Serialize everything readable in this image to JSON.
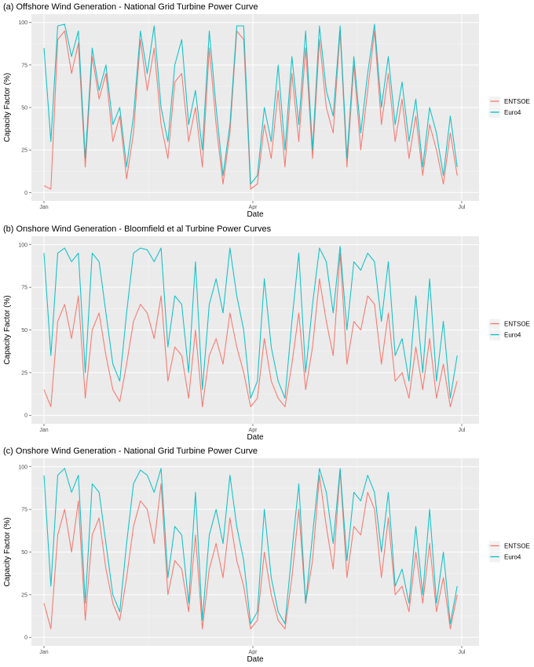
{
  "colors": {
    "entsoe": "#F8766D",
    "euro4": "#00BFC4"
  },
  "chart_data": [
    {
      "type": "line",
      "title": "(a) Offshore Wind Generation - National Grid Turbine Power Curve",
      "xlabel": "Date",
      "ylabel": "Capacity Factor (%)",
      "xlim": [
        "2016-01-01",
        "2016-07-01"
      ],
      "ylim": [
        0,
        100
      ],
      "xticks": [
        "Jan",
        "Apr",
        "Jul"
      ],
      "yticks": [
        "0",
        "25",
        "50",
        "75",
        "100"
      ],
      "grid": true,
      "legend": "right",
      "x": [
        "2016-01-01",
        "2016-01-04",
        "2016-01-07",
        "2016-01-10",
        "2016-01-13",
        "2016-01-16",
        "2016-01-19",
        "2016-01-22",
        "2016-01-25",
        "2016-01-28",
        "2016-01-31",
        "2016-02-03",
        "2016-02-06",
        "2016-02-09",
        "2016-02-12",
        "2016-02-15",
        "2016-02-18",
        "2016-02-21",
        "2016-02-24",
        "2016-02-27",
        "2016-03-01",
        "2016-03-04",
        "2016-03-07",
        "2016-03-10",
        "2016-03-13",
        "2016-03-16",
        "2016-03-19",
        "2016-03-22",
        "2016-03-25",
        "2016-03-28",
        "2016-03-31",
        "2016-04-03",
        "2016-04-06",
        "2016-04-09",
        "2016-04-12",
        "2016-04-15",
        "2016-04-18",
        "2016-04-21",
        "2016-04-24",
        "2016-04-27",
        "2016-04-30",
        "2016-05-03",
        "2016-05-06",
        "2016-05-09",
        "2016-05-12",
        "2016-05-15",
        "2016-05-18",
        "2016-05-21",
        "2016-05-24",
        "2016-05-27",
        "2016-05-30",
        "2016-06-02",
        "2016-06-05",
        "2016-06-08",
        "2016-06-11",
        "2016-06-14",
        "2016-06-17",
        "2016-06-20",
        "2016-06-23",
        "2016-06-26",
        "2016-06-29"
      ],
      "series": [
        {
          "name": "ENTSOE",
          "values": [
            4,
            2,
            90,
            95,
            70,
            88,
            15,
            80,
            55,
            70,
            30,
            45,
            8,
            35,
            90,
            60,
            85,
            40,
            20,
            65,
            70,
            30,
            50,
            15,
            85,
            40,
            5,
            35,
            95,
            90,
            2,
            5,
            40,
            20,
            60,
            15,
            70,
            30,
            85,
            20,
            90,
            50,
            35,
            95,
            15,
            75,
            25,
            60,
            95,
            40,
            70,
            30,
            55,
            20,
            45,
            10,
            40,
            25,
            5,
            35,
            10
          ]
        },
        {
          "name": "Euro4",
          "values": [
            85,
            30,
            98,
            99,
            80,
            95,
            20,
            85,
            60,
            75,
            40,
            50,
            15,
            45,
            95,
            70,
            98,
            50,
            30,
            75,
            90,
            40,
            60,
            25,
            95,
            50,
            10,
            40,
            98,
            98,
            5,
            10,
            50,
            30,
            75,
            25,
            80,
            40,
            95,
            25,
            98,
            60,
            45,
            98,
            20,
            80,
            35,
            70,
            99,
            50,
            80,
            40,
            65,
            30,
            55,
            15,
            50,
            35,
            10,
            45,
            15
          ]
        }
      ]
    },
    {
      "type": "line",
      "title": "(b) Onshore Wind Generation - Bloomfield et al Turbine Power Curves",
      "xlabel": "Date",
      "ylabel": "Capacity Factor (%)",
      "xlim": [
        "2016-01-01",
        "2016-07-01"
      ],
      "ylim": [
        0,
        100
      ],
      "xticks": [
        "Jan",
        "Apr",
        "Jul"
      ],
      "yticks": [
        "0",
        "25",
        "50",
        "75",
        "100"
      ],
      "grid": true,
      "legend": "right",
      "x": [
        "2016-01-01",
        "2016-01-04",
        "2016-01-07",
        "2016-01-10",
        "2016-01-13",
        "2016-01-16",
        "2016-01-19",
        "2016-01-22",
        "2016-01-25",
        "2016-01-28",
        "2016-01-31",
        "2016-02-03",
        "2016-02-06",
        "2016-02-09",
        "2016-02-12",
        "2016-02-15",
        "2016-02-18",
        "2016-02-21",
        "2016-02-24",
        "2016-02-27",
        "2016-03-01",
        "2016-03-04",
        "2016-03-07",
        "2016-03-10",
        "2016-03-13",
        "2016-03-16",
        "2016-03-19",
        "2016-03-22",
        "2016-03-25",
        "2016-03-28",
        "2016-03-31",
        "2016-04-03",
        "2016-04-06",
        "2016-04-09",
        "2016-04-12",
        "2016-04-15",
        "2016-04-18",
        "2016-04-21",
        "2016-04-24",
        "2016-04-27",
        "2016-04-30",
        "2016-05-03",
        "2016-05-06",
        "2016-05-09",
        "2016-05-12",
        "2016-05-15",
        "2016-05-18",
        "2016-05-21",
        "2016-05-24",
        "2016-05-27",
        "2016-05-30",
        "2016-06-02",
        "2016-06-05",
        "2016-06-08",
        "2016-06-11",
        "2016-06-14",
        "2016-06-17",
        "2016-06-20",
        "2016-06-23",
        "2016-06-26",
        "2016-06-29"
      ],
      "series": [
        {
          "name": "ENTSOE",
          "values": [
            15,
            5,
            55,
            65,
            45,
            70,
            10,
            50,
            60,
            35,
            15,
            8,
            30,
            55,
            65,
            60,
            45,
            70,
            20,
            40,
            35,
            10,
            50,
            5,
            35,
            45,
            30,
            60,
            40,
            25,
            5,
            10,
            45,
            20,
            10,
            5,
            30,
            60,
            15,
            40,
            80,
            55,
            35,
            95,
            30,
            55,
            50,
            70,
            65,
            30,
            60,
            20,
            25,
            10,
            40,
            15,
            45,
            10,
            30,
            5,
            20
          ]
        },
        {
          "name": "Euro4",
          "values": [
            95,
            35,
            95,
            98,
            90,
            95,
            25,
            95,
            90,
            60,
            30,
            20,
            60,
            95,
            98,
            97,
            90,
            98,
            40,
            70,
            65,
            25,
            90,
            15,
            65,
            80,
            60,
            98,
            70,
            50,
            10,
            20,
            80,
            40,
            20,
            10,
            55,
            95,
            25,
            65,
            98,
            90,
            60,
            99,
            50,
            90,
            85,
            95,
            90,
            55,
            90,
            35,
            45,
            20,
            70,
            25,
            80,
            20,
            55,
            10,
            35
          ]
        }
      ]
    },
    {
      "type": "line",
      "title": "(c) Onshore Wind Generation - National Grid Turbine Power Curve",
      "xlabel": "Date",
      "ylabel": "Capacity Factor (%)",
      "xlim": [
        "2016-01-01",
        "2016-07-01"
      ],
      "ylim": [
        0,
        100
      ],
      "xticks": [
        "Jan",
        "Apr",
        "Jul"
      ],
      "yticks": [
        "0",
        "25",
        "50",
        "75",
        "100"
      ],
      "grid": true,
      "legend": "right",
      "x": [
        "2016-01-01",
        "2016-01-04",
        "2016-01-07",
        "2016-01-10",
        "2016-01-13",
        "2016-01-16",
        "2016-01-19",
        "2016-01-22",
        "2016-01-25",
        "2016-01-28",
        "2016-01-31",
        "2016-02-03",
        "2016-02-06",
        "2016-02-09",
        "2016-02-12",
        "2016-02-15",
        "2016-02-18",
        "2016-02-21",
        "2016-02-24",
        "2016-02-27",
        "2016-03-01",
        "2016-03-04",
        "2016-03-07",
        "2016-03-10",
        "2016-03-13",
        "2016-03-16",
        "2016-03-19",
        "2016-03-22",
        "2016-03-25",
        "2016-03-28",
        "2016-03-31",
        "2016-04-03",
        "2016-04-06",
        "2016-04-09",
        "2016-04-12",
        "2016-04-15",
        "2016-04-18",
        "2016-04-21",
        "2016-04-24",
        "2016-04-27",
        "2016-04-30",
        "2016-05-03",
        "2016-05-06",
        "2016-05-09",
        "2016-05-12",
        "2016-05-15",
        "2016-05-18",
        "2016-05-21",
        "2016-05-24",
        "2016-05-27",
        "2016-05-30",
        "2016-06-02",
        "2016-06-05",
        "2016-06-08",
        "2016-06-11",
        "2016-06-14",
        "2016-06-17",
        "2016-06-20",
        "2016-06-23",
        "2016-06-26",
        "2016-06-29"
      ],
      "series": [
        {
          "name": "ENTSOE",
          "values": [
            20,
            5,
            60,
            75,
            50,
            80,
            10,
            60,
            70,
            40,
            20,
            10,
            35,
            65,
            80,
            75,
            55,
            90,
            25,
            45,
            40,
            15,
            60,
            5,
            40,
            55,
            35,
            70,
            45,
            30,
            5,
            10,
            50,
            25,
            10,
            5,
            35,
            75,
            20,
            45,
            95,
            65,
            40,
            98,
            35,
            65,
            60,
            85,
            75,
            35,
            70,
            25,
            30,
            15,
            50,
            20,
            55,
            15,
            35,
            5,
            25
          ]
        },
        {
          "name": "Euro4",
          "values": [
            95,
            30,
            95,
            99,
            85,
            95,
            20,
            90,
            85,
            55,
            25,
            15,
            55,
            90,
            98,
            95,
            85,
            99,
            35,
            65,
            60,
            20,
            85,
            10,
            60,
            75,
            55,
            95,
            65,
            45,
            8,
            15,
            75,
            35,
            15,
            8,
            50,
            90,
            20,
            60,
            99,
            85,
            55,
            99,
            45,
            85,
            80,
            95,
            85,
            50,
            85,
            30,
            40,
            20,
            65,
            25,
            75,
            20,
            50,
            8,
            30
          ]
        }
      ]
    }
  ]
}
